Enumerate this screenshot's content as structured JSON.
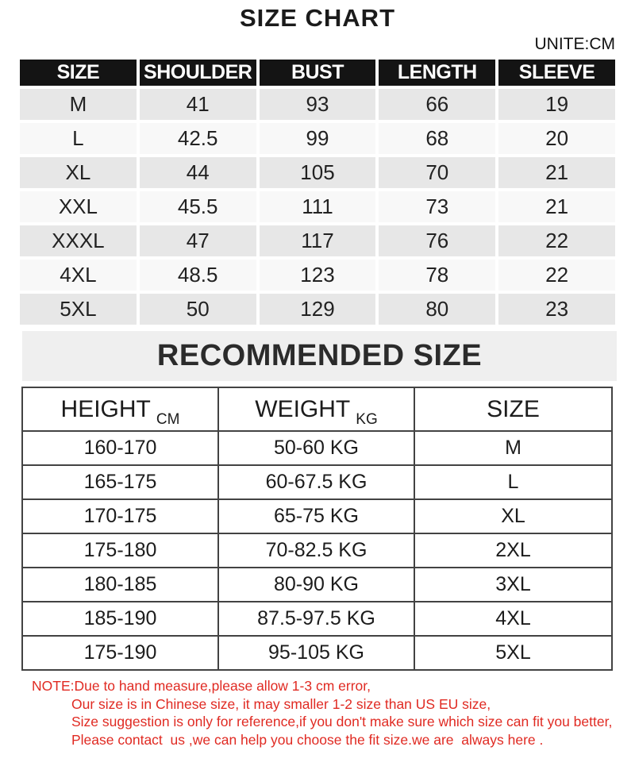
{
  "page": {
    "title": "SIZE CHART",
    "unit_label": "UNITE:CM",
    "recommended_title": "RECOMMENDED SIZE"
  },
  "size_table": {
    "headers": [
      "SIZE",
      "SHOULDER",
      "BUST",
      "LENGTH",
      "SLEEVE"
    ],
    "rows": [
      [
        "M",
        "41",
        "93",
        "66",
        "19"
      ],
      [
        "L",
        "42.5",
        "99",
        "68",
        "20"
      ],
      [
        "XL",
        "44",
        "105",
        "70",
        "21"
      ],
      [
        "XXL",
        "45.5",
        "111",
        "73",
        "21"
      ],
      [
        "XXXL",
        "47",
        "117",
        "76",
        "22"
      ],
      [
        "4XL",
        "48.5",
        "123",
        "78",
        "22"
      ],
      [
        "5XL",
        "50",
        "129",
        "80",
        "23"
      ]
    ]
  },
  "recommend_table": {
    "headers": [
      {
        "label": "HEIGHT",
        "unit": "CM"
      },
      {
        "label": "WEIGHT",
        "unit": "KG"
      },
      {
        "label": "SIZE",
        "unit": ""
      }
    ],
    "rows": [
      [
        "160-170",
        "50-60 KG",
        "M"
      ],
      [
        "165-175",
        "60-67.5 KG",
        "L"
      ],
      [
        "170-175",
        "65-75 KG",
        "XL"
      ],
      [
        "175-180",
        "70-82.5 KG",
        "2XL"
      ],
      [
        "180-185",
        "80-90 KG",
        "3XL"
      ],
      [
        "185-190",
        "87.5-97.5 KG",
        "4XL"
      ],
      [
        "175-190",
        "95-105 KG",
        "5XL"
      ]
    ]
  },
  "note": {
    "lines": [
      "NOTE:Due to hand measure,please allow 1-3 cm error,",
      "Our size is in Chinese size, it may smaller 1-2 size than US EU size,",
      "Size suggestion is only for reference,if you don't make sure which size can fit you better,",
      "Please contact  us ,we can help you choose the fit size.we are  always here ."
    ]
  },
  "colors": {
    "header_bg": "#141414",
    "row_gray": "#e7e7e7",
    "row_light": "#f8f8f8",
    "band_bg": "#efefef",
    "note_red": "#e02a22",
    "border_dark": "#434343"
  }
}
